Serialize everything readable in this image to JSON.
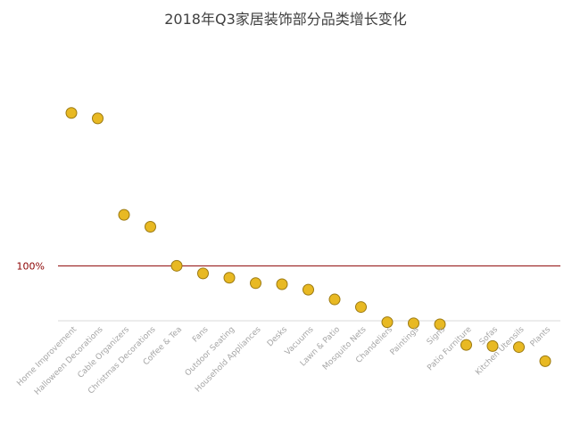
{
  "chart_data": {
    "type": "scatter",
    "title": "2018年Q3家居装饰部分品类增长变化",
    "categories": [
      "Home Improvement",
      "Halloween Decorations",
      "Cable Organizers",
      "Christmas Decorations",
      "Coffee & Tea",
      "Fans",
      "Outdoor Seating",
      "Household Appliances",
      "Desks",
      "Vacuums",
      "Lawn & Patio",
      "Mosquito Nets",
      "Chandeliers",
      "Paintings",
      "Signs",
      "Patio Furniture",
      "Sofas",
      "Kitchen Utensils",
      "Plants"
    ],
    "series": [
      {
        "values": [
          241,
          236,
          147,
          136,
          100,
          93,
          89,
          84,
          83,
          78,
          69,
          62,
          48,
          47,
          46,
          27,
          26,
          25,
          12
        ]
      }
    ],
    "reference_line": {
      "value": 100,
      "label": "100%",
      "color": "#8b0000"
    },
    "ylim": [
      0,
      300
    ],
    "grid": false,
    "legend": "none",
    "marker_color": "#e8b923",
    "marker_edge_color": "#9c7a12"
  }
}
